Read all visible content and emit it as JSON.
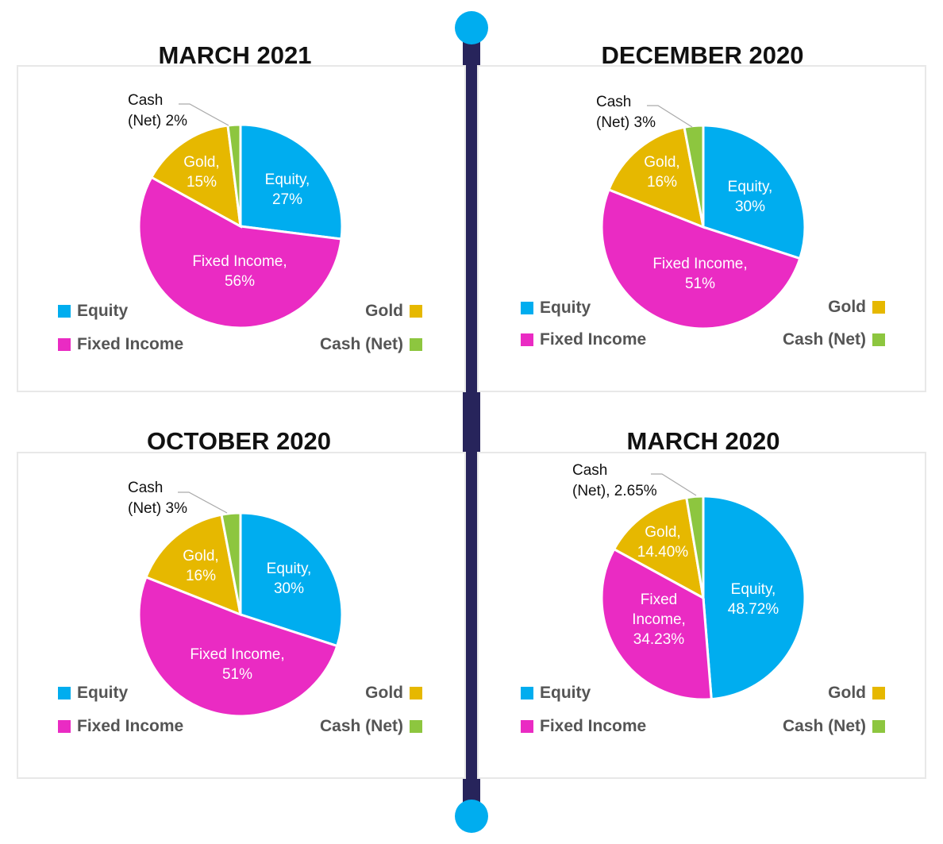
{
  "colors": {
    "equity": "#00adef",
    "fixed_income": "#ea2bc3",
    "gold": "#e6b800",
    "cash": "#8dc63f",
    "timeline": "#27245b",
    "timeline_dot": "#00adef"
  },
  "legend_labels": {
    "equity": "Equity",
    "fixed_income": "Fixed Income",
    "gold": "Gold",
    "cash": "Cash (Net)"
  },
  "chart_data": [
    {
      "type": "pie",
      "title": "MARCH 2021",
      "slices": [
        {
          "key": "equity",
          "value": 27,
          "label": [
            "Equity,",
            "27%"
          ]
        },
        {
          "key": "fixed_income",
          "value": 56,
          "label": [
            "Fixed Income,",
            "56%"
          ]
        },
        {
          "key": "gold",
          "value": 15,
          "label": [
            "Gold,",
            "15%"
          ]
        },
        {
          "key": "cash",
          "value": 2,
          "label": [
            "Cash",
            "(Net) 2%"
          ]
        }
      ]
    },
    {
      "type": "pie",
      "title": "DECEMBER 2020",
      "slices": [
        {
          "key": "equity",
          "value": 30,
          "label": [
            "Equity,",
            "30%"
          ]
        },
        {
          "key": "fixed_income",
          "value": 51,
          "label": [
            "Fixed Income,",
            "51%"
          ]
        },
        {
          "key": "gold",
          "value": 16,
          "label": [
            "Gold,",
            "16%"
          ]
        },
        {
          "key": "cash",
          "value": 3,
          "label": [
            "Cash",
            "(Net) 3%"
          ]
        }
      ]
    },
    {
      "type": "pie",
      "title": "OCTOBER 2020",
      "slices": [
        {
          "key": "equity",
          "value": 30,
          "label": [
            "Equity,",
            "30%"
          ]
        },
        {
          "key": "fixed_income",
          "value": 51,
          "label": [
            "Fixed Income,",
            "51%"
          ]
        },
        {
          "key": "gold",
          "value": 16,
          "label": [
            "Gold,",
            "16%"
          ]
        },
        {
          "key": "cash",
          "value": 3,
          "label": [
            "Cash",
            "(Net) 3%"
          ]
        }
      ]
    },
    {
      "type": "pie",
      "title": "MARCH 2020",
      "slices": [
        {
          "key": "equity",
          "value": 48.72,
          "label": [
            "Equity,",
            "48.72%"
          ]
        },
        {
          "key": "fixed_income",
          "value": 34.23,
          "label": [
            "Fixed",
            "Income,",
            "34.23%"
          ]
        },
        {
          "key": "gold",
          "value": 14.4,
          "label": [
            "Gold,",
            "14.40%"
          ]
        },
        {
          "key": "cash",
          "value": 2.65,
          "label": [
            "Cash",
            "(Net), 2.65%"
          ]
        }
      ]
    }
  ]
}
